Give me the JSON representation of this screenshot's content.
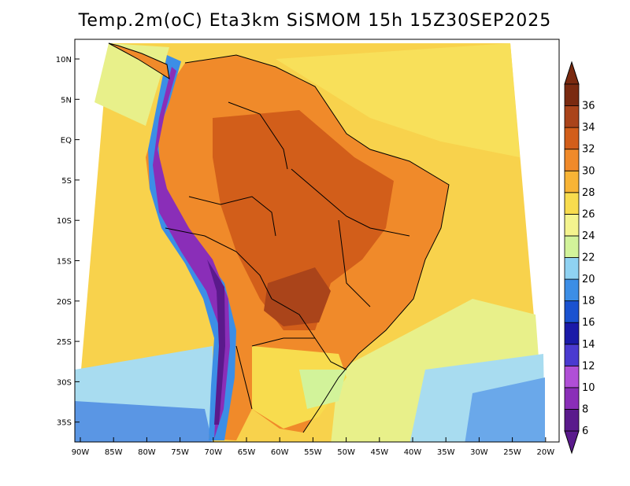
{
  "title": "Temp.2m(oC) Eta3km SiSMOM 15h 15Z30SEP2025",
  "lat_labels": [
    "10N",
    "5N",
    "EQ",
    "5S",
    "10S",
    "15S",
    "20S",
    "25S",
    "30S",
    "35S"
  ],
  "lon_labels": [
    "90W",
    "85W",
    "80W",
    "75W",
    "70W",
    "65W",
    "60W",
    "55W",
    "50W",
    "45W",
    "40W",
    "35W",
    "30W",
    "25W",
    "20W"
  ],
  "colorbar": {
    "labels": [
      "6",
      "8",
      "10",
      "12",
      "14",
      "16",
      "18",
      "20",
      "22",
      "24",
      "26",
      "28",
      "30",
      "32",
      "34",
      "36"
    ],
    "colors": [
      "#5a1a8c",
      "#8a2eb8",
      "#b04fd6",
      "#4a3ad0",
      "#1a1aa8",
      "#1a52d0",
      "#3c8ee6",
      "#8fd2f2",
      "#d2f39a",
      "#f4f48e",
      "#f8dc4e",
      "#f8b436",
      "#f08a2a",
      "#d25e1a",
      "#aa441a",
      "#7a2a10"
    ]
  },
  "colors": {
    "ocean": "#f8d24c",
    "land_hot": "#d45e1a",
    "andes_cold": "#4a2aa8",
    "border": "#000000"
  }
}
